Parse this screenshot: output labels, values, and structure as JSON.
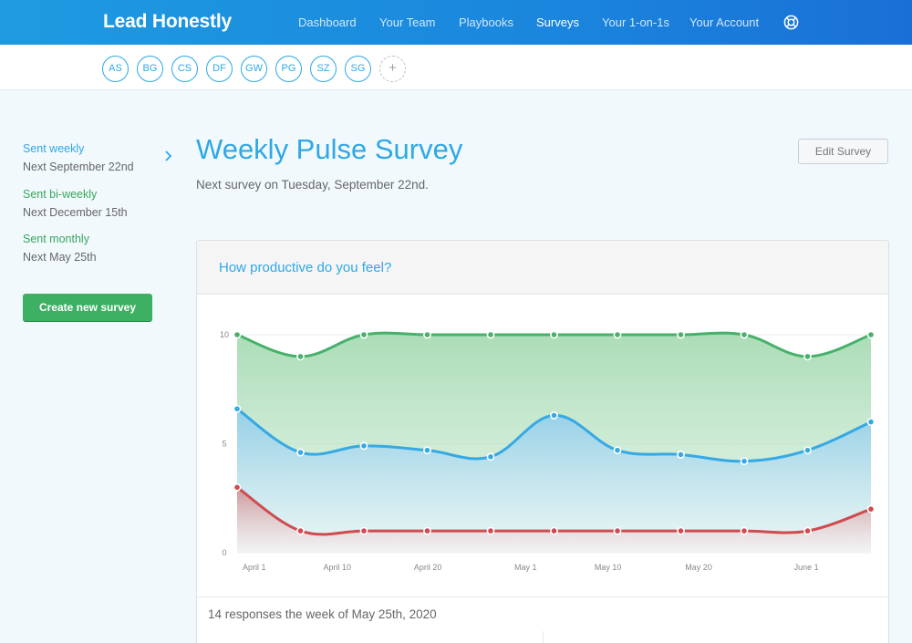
{
  "app": {
    "title": "Lead Honestly"
  },
  "nav": [
    {
      "label": "Dashboard",
      "active": false
    },
    {
      "label": "Your Team",
      "active": false
    },
    {
      "label": "Playbooks",
      "active": false
    },
    {
      "label": "Surveys",
      "active": true
    },
    {
      "label": "Your 1-on-1s",
      "active": false
    },
    {
      "label": "Your Account",
      "active": false
    }
  ],
  "team": [
    "AS",
    "BG",
    "CS",
    "DF",
    "GW",
    "PG",
    "SZ",
    "SG"
  ],
  "team_add_label": "+",
  "sidebar": {
    "groups": [
      {
        "label": "Sent weekly",
        "sub": "Next September 22nd",
        "color": "#2ea8e6"
      },
      {
        "label": "Sent bi-weekly",
        "sub": "Next December 15th",
        "color": "#37a65c"
      },
      {
        "label": "Sent monthly",
        "sub": "Next May 25th",
        "color": "#37a65c"
      }
    ],
    "create_label": "Create new survey"
  },
  "page": {
    "title": "Weekly Pulse Survey",
    "subtitle": "Next survey on Tuesday, September 22nd.",
    "edit_label": "Edit Survey"
  },
  "card": {
    "question": "How productive do you feel?",
    "footer": "14 responses the week of May 25th, 2020"
  },
  "chart_data": {
    "type": "area",
    "ylim": [
      0,
      10
    ],
    "y_ticks": [
      0,
      5,
      10
    ],
    "x_tick_labels": [
      "April 1",
      "April 10",
      "April 20",
      "May 1",
      "May 10",
      "May 20",
      "June 1"
    ],
    "grid": true,
    "series": [
      {
        "color": "#47b06a",
        "values": [
          10,
          9,
          10,
          10,
          10,
          10,
          10,
          10,
          10,
          9,
          10
        ]
      },
      {
        "color": "#36a9e4",
        "values": [
          6.6,
          4.6,
          4.9,
          4.7,
          4.4,
          6.3,
          4.7,
          4.5,
          4.2,
          4.7,
          6.0
        ]
      },
      {
        "color": "#cf4b4f",
        "values": [
          3.0,
          1.0,
          1.0,
          1.0,
          1.0,
          1.0,
          1.0,
          1.0,
          1.0,
          1.0,
          2.0
        ]
      }
    ]
  }
}
